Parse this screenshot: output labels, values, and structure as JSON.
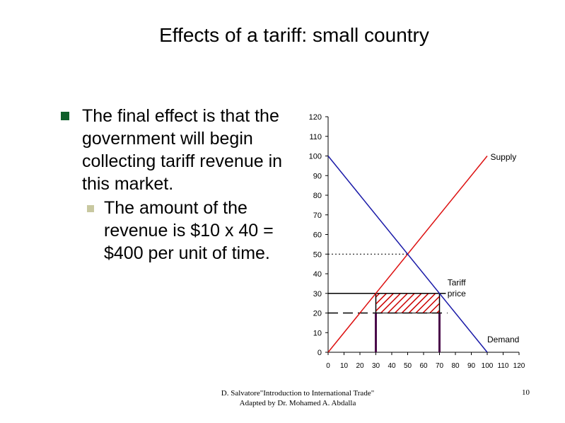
{
  "slide": {
    "title": "Effects of a tariff: small country",
    "bullets": [
      "The final effect is that the government will begin collecting tariff revenue in this market.",
      "The amount of the revenue is $10 x 40 = $400 per unit of time."
    ],
    "footer_line1": "D. Salvatore\"Introduction to International Trade\"",
    "footer_line2": "Adapted by Dr. Mohamed A. Abdalla",
    "page_number": "10"
  },
  "colors": {
    "supply": "#dd1111",
    "demand": "#1a1aa8",
    "hatch": "#cc0000",
    "bullet": "#0f5f2a"
  },
  "chart_data": {
    "type": "line",
    "xlim": [
      0,
      120
    ],
    "ylim": [
      0,
      120
    ],
    "x_ticks": [
      0,
      10,
      20,
      30,
      40,
      50,
      60,
      70,
      80,
      90,
      100,
      110,
      120
    ],
    "y_ticks": [
      0,
      10,
      20,
      30,
      40,
      50,
      60,
      70,
      80,
      90,
      100,
      110,
      120
    ],
    "series": [
      {
        "name": "Supply",
        "points": [
          [
            0,
            0
          ],
          [
            100,
            100
          ]
        ]
      },
      {
        "name": "Demand",
        "points": [
          [
            0,
            100
          ],
          [
            100,
            0
          ]
        ]
      }
    ],
    "equilibrium_price": 50,
    "world_price": 20,
    "tariff_price": 30,
    "domestic_production_with_tariff": 30,
    "domestic_consumption_with_tariff": 70,
    "tariff_revenue_area": {
      "x": [
        30,
        70
      ],
      "y": [
        20,
        30
      ]
    },
    "annotations": {
      "supply_label": "Supply",
      "demand_label": "Demand",
      "tariff_label_line1": "Tariff",
      "tariff_label_line2": "price"
    }
  }
}
